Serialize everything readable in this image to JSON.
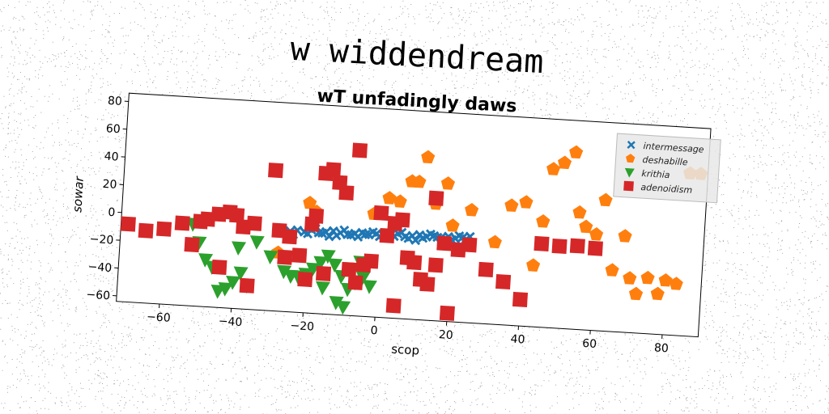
{
  "figure": {
    "title": "w widdendream",
    "subtitle": "wT unfadingly daws"
  },
  "chart_data": {
    "type": "scatter",
    "xlabel": "scop",
    "ylabel": "sowar",
    "xlim": [
      -72,
      90
    ],
    "ylim": [
      -64,
      86
    ],
    "xticks": [
      -60,
      -40,
      -20,
      0,
      20,
      40,
      60,
      80
    ],
    "yticks": [
      -60,
      -40,
      -20,
      0,
      20,
      40,
      60,
      80
    ],
    "xtick_labels": [
      "−60",
      "−40",
      "−20",
      "0",
      "20",
      "40",
      "60",
      "80"
    ],
    "ytick_labels": [
      "−60",
      "−40",
      "−20",
      "0",
      "20",
      "40",
      "60",
      "80"
    ],
    "grid": false,
    "legend_position": "top-right",
    "series": [
      {
        "name": "intermessage",
        "marker": "X",
        "color": "#1f77b4",
        "x": [
          -25,
          -23,
          -21,
          -19,
          -17,
          -15,
          -13,
          -11,
          -9,
          -7,
          -5,
          -3,
          -1,
          1,
          3,
          5,
          7,
          9,
          11,
          13,
          15,
          17,
          19,
          21,
          23,
          25,
          -24,
          -20,
          -16,
          -12,
          -8,
          -4,
          0,
          4,
          8,
          12,
          16,
          20,
          24,
          -18,
          -10,
          -2,
          6,
          14,
          22,
          -14,
          -6,
          2,
          10,
          18
        ],
        "y": [
          -6,
          -5,
          -6,
          -4,
          -6,
          -5,
          -4,
          -5,
          -6,
          -5,
          -4,
          -5,
          -4,
          -5,
          -4,
          -3,
          -5,
          -4,
          -3,
          -4,
          -3,
          -4,
          -3,
          -4,
          -3,
          -2,
          -8,
          -7,
          -6,
          -7,
          -6,
          -5,
          -6,
          -5,
          -6,
          -5,
          -4,
          -5,
          -4,
          -3,
          -3,
          -3,
          -2,
          -2,
          -2,
          -8,
          -7,
          -6,
          -7,
          -6
        ]
      },
      {
        "name": "deshabille",
        "marker": "p",
        "color": "#ff7f0e",
        "x": [
          -28,
          -20,
          -18,
          -2,
          2,
          5,
          8,
          10,
          12,
          15,
          18,
          20,
          25,
          32,
          36,
          40,
          43,
          45,
          47,
          50,
          53,
          55,
          57,
          60,
          62,
          65,
          68,
          70,
          72,
          75,
          78,
          80,
          83,
          85,
          88
        ],
        "y": [
          -22,
          15,
          9,
          10,
          22,
          20,
          35,
          35,
          53,
          20,
          35,
          5,
          17,
          -5,
          22,
          25,
          -20,
          12,
          50,
          55,
          63,
          20,
          10,
          5,
          30,
          -20,
          5,
          -25,
          -36,
          -24,
          -35,
          -25,
          -27,
          53,
          53
        ],
        "sizes_note": ""
      },
      {
        "name": "krithia",
        "marker": "v",
        "color": "#2ca02c",
        "x": [
          -52,
          -50,
          -46,
          -44,
          -42,
          -40,
          -38,
          -36,
          -34,
          -30,
          -26,
          -22,
          -20,
          -18,
          -16,
          -14,
          -12,
          -10,
          -8,
          -6,
          -4,
          -2,
          -48,
          -39,
          -24,
          -15,
          -11,
          -9,
          -7,
          -5
        ],
        "y": [
          -5,
          -18,
          -35,
          -52,
          -50,
          -45,
          -38,
          -47,
          -15,
          -25,
          -35,
          -38,
          -36,
          -32,
          -27,
          -22,
          -28,
          -36,
          -45,
          -40,
          -36,
          -42,
          -30,
          -20,
          -38,
          -45,
          -55,
          -58,
          -30,
          -25
        ],
        "sizes_note": ""
      },
      {
        "name": "adenoidism",
        "marker": "s",
        "color": "#d62728",
        "x": [
          -70,
          -65,
          -60,
          -55,
          -52,
          -50,
          -48,
          -45,
          -42,
          -40,
          -38,
          -35,
          -30,
          -28,
          -25,
          -22,
          -20,
          -19,
          -18,
          -16,
          -14,
          -12,
          -10,
          -8,
          -6,
          -4,
          -2,
          0,
          2,
          4,
          6,
          8,
          10,
          12,
          14,
          16,
          18,
          20,
          22,
          25,
          30,
          35,
          40,
          45,
          50,
          55,
          60,
          -44,
          -36,
          -26,
          -15,
          -7,
          5,
          15
        ],
        "y": [
          -8,
          -12,
          -10,
          -5,
          -20,
          -3,
          -1,
          3,
          5,
          3,
          -5,
          -2,
          37,
          -6,
          -10,
          -23,
          -40,
          0,
          6,
          37,
          40,
          31,
          24,
          -31,
          -40,
          -27,
          -24,
          11,
          -5,
          4,
          7,
          -20,
          -23,
          -35,
          -38,
          -24,
          -8,
          -58,
          -12,
          -8,
          -25,
          -33,
          -45,
          -4,
          -5,
          -4,
          -5,
          -35,
          -47,
          -25,
          -35,
          55,
          -55,
          24
        ],
        "sizes_note": ""
      }
    ]
  }
}
